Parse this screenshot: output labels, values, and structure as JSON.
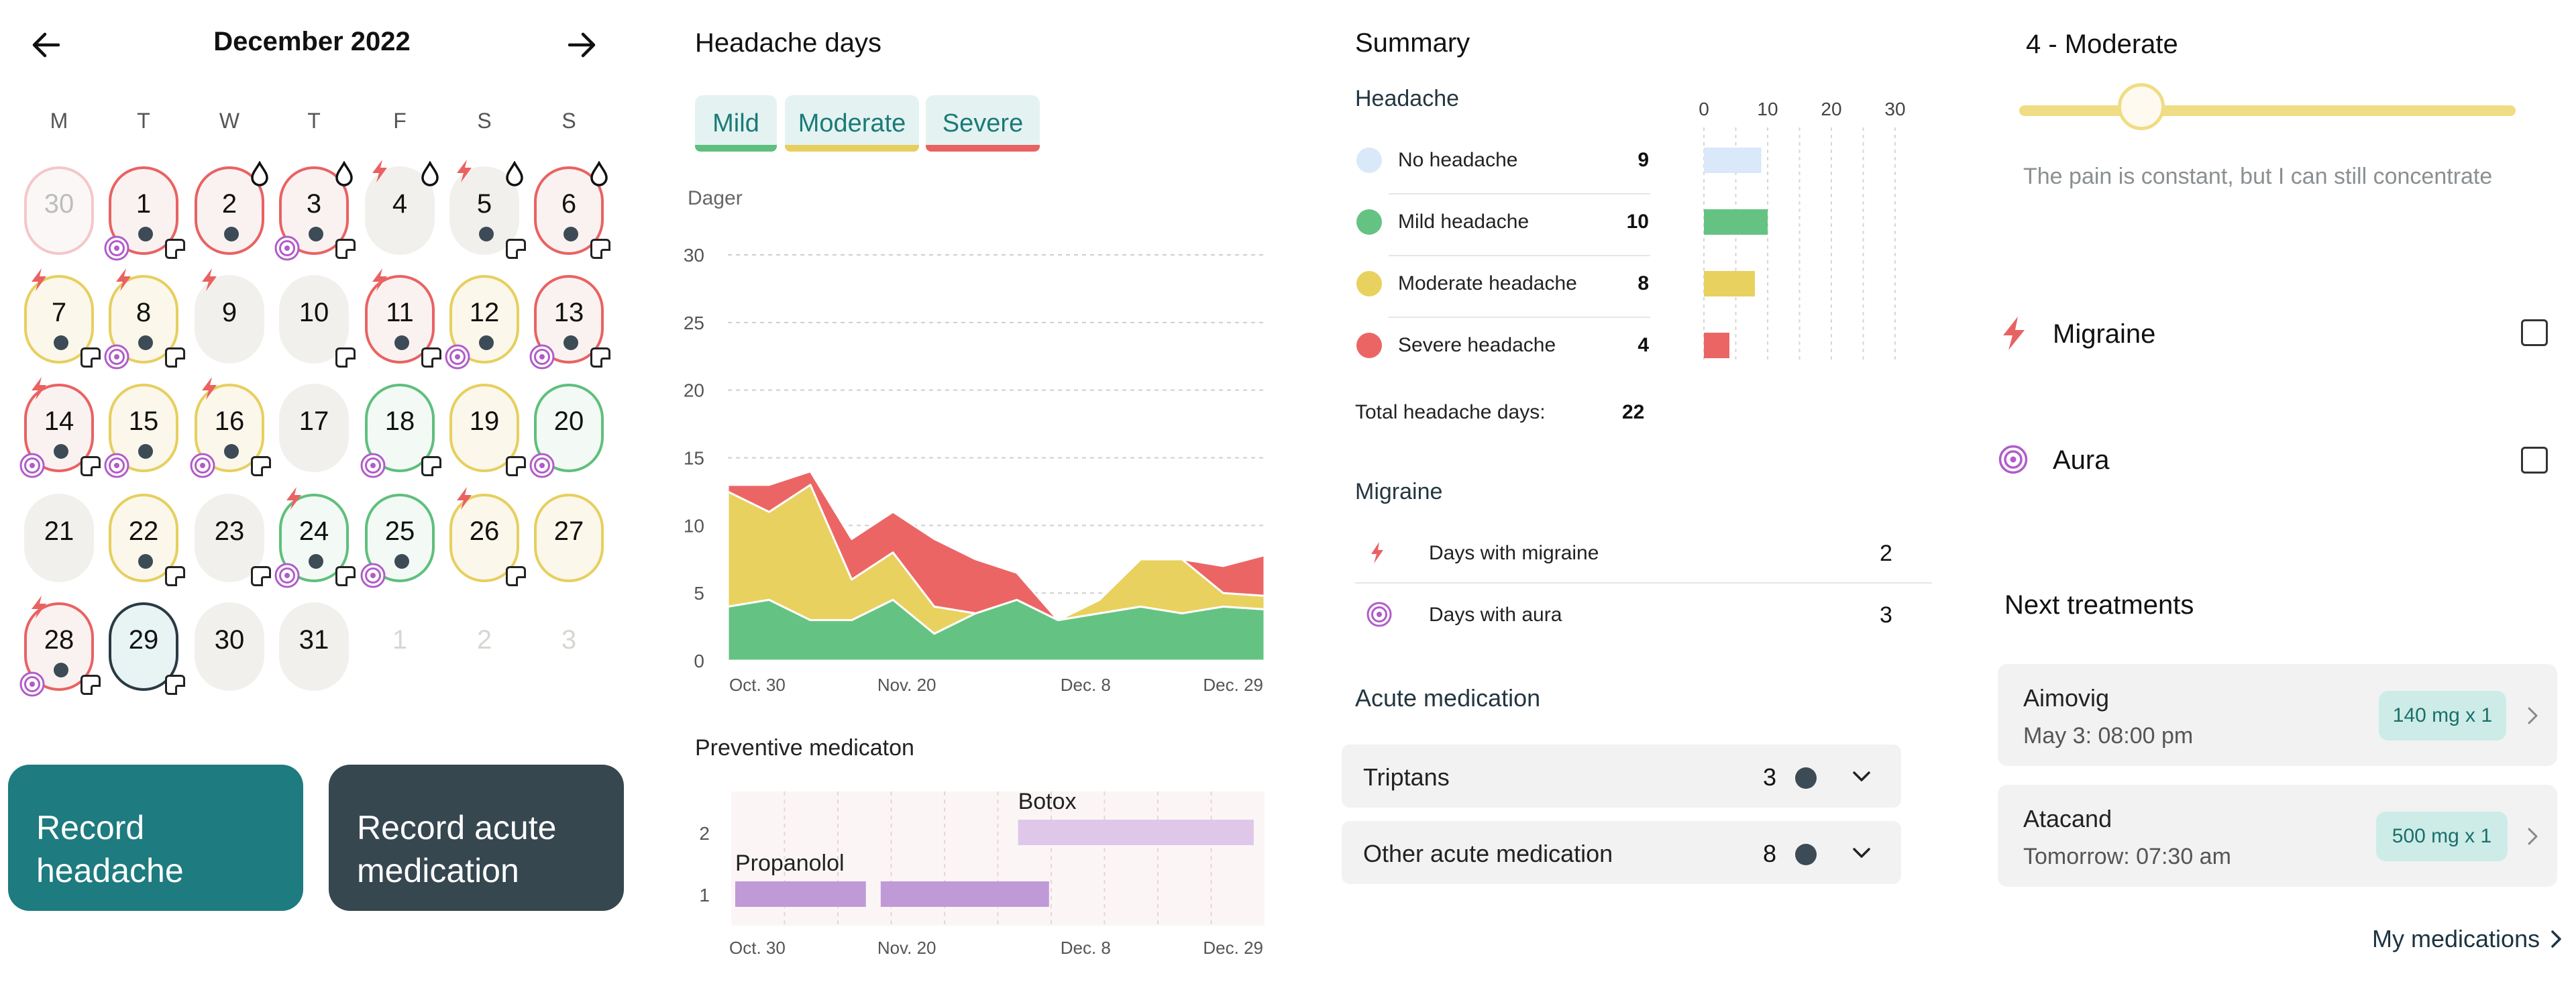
{
  "calendar": {
    "month_label": "December 2022",
    "weekdays": [
      "M",
      "T",
      "W",
      "T",
      "F",
      "S",
      "S"
    ],
    "days": [
      {
        "n": "30",
        "kind": "prev"
      },
      {
        "n": "1",
        "border": "sev",
        "dot": true,
        "note": true,
        "aura": true
      },
      {
        "n": "2",
        "border": "sev",
        "dot": true,
        "drop": true
      },
      {
        "n": "3",
        "border": "sev",
        "dot": true,
        "note": true,
        "aura": true,
        "drop": true
      },
      {
        "n": "4",
        "bolt": true,
        "drop": true
      },
      {
        "n": "5",
        "dot": true,
        "note": true,
        "bolt": true,
        "drop": true
      },
      {
        "n": "6",
        "border": "sev",
        "dot": true,
        "note": true,
        "drop": true
      },
      {
        "n": "7",
        "border": "mod",
        "dot": true,
        "note": true,
        "bolt": true
      },
      {
        "n": "8",
        "border": "mod",
        "dot": true,
        "note": true,
        "aura": true,
        "bolt": true
      },
      {
        "n": "9",
        "bolt": true
      },
      {
        "n": "10",
        "note": true
      },
      {
        "n": "11",
        "border": "sev",
        "dot": true,
        "note": true,
        "bolt": true
      },
      {
        "n": "12",
        "border": "mod",
        "dot": true,
        "aura": true
      },
      {
        "n": "13",
        "border": "sev",
        "dot": true,
        "note": true,
        "aura": true
      },
      {
        "n": "14",
        "border": "sev",
        "dot": true,
        "note": true,
        "aura": true,
        "bolt": true
      },
      {
        "n": "15",
        "border": "mod",
        "dot": true,
        "aura": true
      },
      {
        "n": "16",
        "border": "mod",
        "dot": true,
        "note": true,
        "aura": true,
        "bolt": true
      },
      {
        "n": "17"
      },
      {
        "n": "18",
        "border": "mild",
        "note": true,
        "aura": true
      },
      {
        "n": "19",
        "border": "mod",
        "note": true
      },
      {
        "n": "20",
        "border": "mild",
        "aura": true
      },
      {
        "n": "21"
      },
      {
        "n": "22",
        "border": "mod",
        "dot": true,
        "note": true
      },
      {
        "n": "23",
        "note": true
      },
      {
        "n": "24",
        "border": "mild",
        "dot": true,
        "note": true,
        "aura": true,
        "bolt": true
      },
      {
        "n": "25",
        "border": "mild",
        "dot": true,
        "aura": true
      },
      {
        "n": "26",
        "border": "mod",
        "note": true,
        "bolt": true
      },
      {
        "n": "27",
        "border": "mod"
      },
      {
        "n": "28",
        "border": "sev",
        "dot": true,
        "note": true,
        "aura": true,
        "bolt": true
      },
      {
        "n": "29",
        "kind": "today",
        "note": true
      },
      {
        "n": "30"
      },
      {
        "n": "31"
      },
      {
        "n": "1",
        "kind": "faded"
      },
      {
        "n": "2",
        "kind": "faded"
      },
      {
        "n": "3",
        "kind": "faded"
      }
    ]
  },
  "actions": {
    "record_headache": "Record headache",
    "record_acute": "Record acute medication"
  },
  "headache_days": {
    "title": "Headache days",
    "chips": [
      {
        "label": "Mild",
        "color": "#5fbf7d"
      },
      {
        "label": "Moderate",
        "color": "#e6cf5e"
      },
      {
        "label": "Severe",
        "color": "#e96262"
      }
    ]
  },
  "chart_data": [
    {
      "type": "area",
      "title": "",
      "ylabel": "Dager",
      "xlabel": "",
      "ylim": [
        0,
        30
      ],
      "yticks": [
        0,
        5,
        10,
        15,
        20,
        25,
        30
      ],
      "x_tick_labels": [
        "Oct. 30",
        "Nov. 20",
        "Dec. 8",
        "Dec. 29"
      ],
      "x": [
        0,
        1,
        2,
        3,
        4,
        5,
        6,
        7,
        8,
        9,
        10,
        11,
        12,
        13
      ],
      "stacked": true,
      "series": [
        {
          "name": "Mild",
          "color": "#64c383",
          "values": [
            4,
            4.5,
            3,
            3,
            4.5,
            2,
            3.5,
            4.5,
            3,
            3.5,
            4,
            3.5,
            4,
            3.8
          ]
        },
        {
          "name": "Moderate",
          "color": "#e8d15e",
          "values": [
            8.5,
            6.5,
            10,
            3,
            3.5,
            2,
            0,
            0,
            0,
            1,
            3.5,
            4,
            1,
            1
          ]
        },
        {
          "name": "Severe",
          "color": "#ec6565",
          "values": [
            0.5,
            2,
            1,
            3,
            3,
            5,
            4,
            2,
            0,
            0,
            0,
            0,
            2,
            3
          ]
        }
      ],
      "grid": true
    },
    {
      "type": "bar",
      "orientation": "horizontal",
      "title": "Preventive medicaton",
      "x_tick_labels": [
        "Oct. 30",
        "Nov. 20",
        "Dec. 8",
        "Dec. 29"
      ],
      "yticks": [
        "1",
        "2"
      ],
      "bars": [
        {
          "label": "Propanolol",
          "row": 1,
          "start": 0,
          "end": 2.5
        },
        {
          "label": "",
          "row": 1,
          "start": 2.7,
          "end": 5.9
        },
        {
          "label": "Botox",
          "row": 2,
          "start": 5.25,
          "end": 9.7
        }
      ],
      "xlim": [
        0,
        9.9
      ],
      "colors": {
        "row1": "#bf9ad7",
        "row2": "#dfc7ea"
      }
    },
    {
      "type": "bar",
      "orientation": "horizontal",
      "title": "",
      "categories": [
        "No headache",
        "Mild headache",
        "Moderate headache",
        "Severe headache"
      ],
      "values": [
        9,
        10,
        8,
        4
      ],
      "colors": [
        "#d9e9fa",
        "#64c383",
        "#e8d15e",
        "#ec6565"
      ],
      "xticks": [
        0,
        10,
        20,
        30
      ],
      "xlim": [
        0,
        30
      ],
      "grid": true
    }
  ],
  "summary": {
    "title": "Summary",
    "headache_title": "Headache",
    "rows": [
      {
        "label": "No headache",
        "value": "9",
        "color": "#d9e9fa"
      },
      {
        "label": "Mild headache",
        "value": "10",
        "color": "#64c383"
      },
      {
        "label": "Moderate headache",
        "value": "8",
        "color": "#e8d15e"
      },
      {
        "label": "Severe headache",
        "value": "4",
        "color": "#ec6565"
      }
    ],
    "total_label": "Total headache days:",
    "total_value": "22",
    "migraine_title": "Migraine",
    "migraine_rows": [
      {
        "label": "Days with migraine",
        "value": "2"
      },
      {
        "label": "Days with aura",
        "value": "3"
      }
    ],
    "acute_title": "Acute medication",
    "acute_rows": [
      {
        "label": "Triptans",
        "value": "3"
      },
      {
        "label": "Other acute medication",
        "value": "8"
      }
    ]
  },
  "intensity": {
    "label": "4 - Moderate",
    "level": 0.22,
    "description": "The pain is constant, but I can still concentrate",
    "track_color": "#f0dc85"
  },
  "symptoms": [
    {
      "label": "Migraine",
      "checked": false
    },
    {
      "label": "Aura",
      "checked": false
    }
  ],
  "treatments": {
    "title": "Next treatments",
    "items": [
      {
        "name": "Aimovig",
        "when": "May 3: 08:00 pm",
        "dose": "140 mg x 1"
      },
      {
        "name": "Atacand",
        "when": "Tomorrow: 07:30 am",
        "dose": "500 mg x 1"
      }
    ],
    "link": "My medications"
  }
}
